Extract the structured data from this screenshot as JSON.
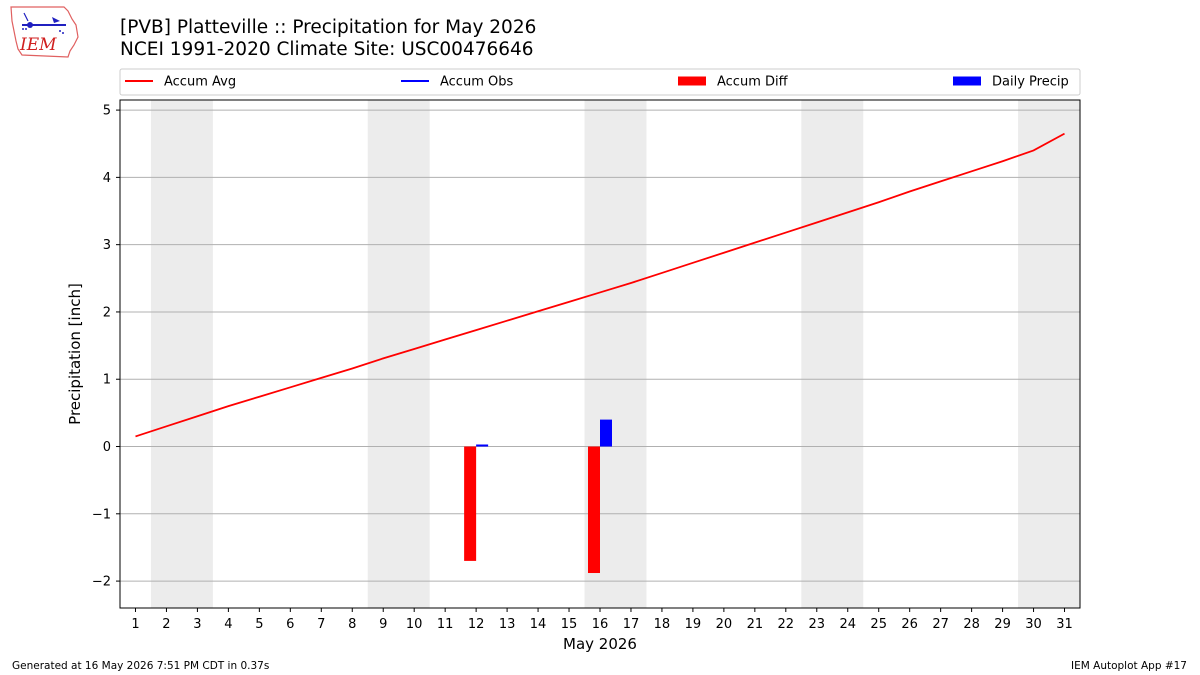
{
  "header": {
    "title_line1": "[PVB] Platteville :: Precipitation for May 2026",
    "title_line2": "NCEI 1991-2020 Climate Site: USC00476646",
    "logo_text": "IEM"
  },
  "footer": {
    "generated": "Generated at 16 May 2026 7:51 PM CDT in 0.37s",
    "app": "IEM Autoplot App #17"
  },
  "colors": {
    "avg": "#ff0000",
    "obs": "#0000ff",
    "diff": "#ff0000",
    "daily": "#0000ff",
    "weekend_shade": "#ececec",
    "grid": "#b0b0b0"
  },
  "chart_data": {
    "type": "line",
    "xlabel": "May 2026",
    "ylabel": "Precipitation [inch]",
    "xlim": [
      0.5,
      31.5
    ],
    "ylim": [
      -2.4,
      5.15
    ],
    "yticks": [
      -2,
      -1,
      0,
      1,
      2,
      3,
      4,
      5
    ],
    "ytick_labels": [
      "−2",
      "−1",
      "0",
      "1",
      "2",
      "3",
      "4",
      "5"
    ],
    "xticks": [
      1,
      2,
      3,
      4,
      5,
      6,
      7,
      8,
      9,
      10,
      11,
      12,
      13,
      14,
      15,
      16,
      17,
      18,
      19,
      20,
      21,
      22,
      23,
      24,
      25,
      26,
      27,
      28,
      29,
      30,
      31
    ],
    "xtick_labels": [
      "1",
      "2",
      "3",
      "4",
      "5",
      "6",
      "7",
      "8",
      "9",
      "10",
      "11",
      "12",
      "13",
      "14",
      "15",
      "16",
      "17",
      "18",
      "19",
      "20",
      "21",
      "22",
      "23",
      "24",
      "25",
      "26",
      "27",
      "28",
      "29",
      "30",
      "31"
    ],
    "grid": "horizontal",
    "shaded_day_ranges": [
      [
        1.5,
        3.5
      ],
      [
        8.5,
        10.5
      ],
      [
        15.5,
        17.5
      ],
      [
        22.5,
        24.5
      ],
      [
        29.5,
        31.5
      ]
    ],
    "legend": {
      "placement": "top",
      "entries": [
        {
          "label": "Accum Avg",
          "kind": "line"
        },
        {
          "label": "Accum Obs",
          "kind": "line"
        },
        {
          "label": "Accum Diff",
          "kind": "bar"
        },
        {
          "label": "Daily Precip",
          "kind": "bar"
        }
      ]
    },
    "series": [
      {
        "name": "Accum Avg",
        "type": "line",
        "x": [
          1,
          2,
          3,
          4,
          5,
          6,
          7,
          8,
          9,
          10,
          11,
          12,
          13,
          14,
          15,
          16,
          17,
          18,
          19,
          20,
          21,
          22,
          23,
          24,
          25,
          26,
          27,
          28,
          29,
          30,
          31
        ],
        "values": [
          0.15,
          0.3,
          0.45,
          0.6,
          0.74,
          0.88,
          1.02,
          1.16,
          1.31,
          1.45,
          1.59,
          1.73,
          1.87,
          2.01,
          2.15,
          2.29,
          2.43,
          2.58,
          2.73,
          2.88,
          3.03,
          3.18,
          3.33,
          3.48,
          3.63,
          3.79,
          3.94,
          4.09,
          4.24,
          4.4,
          4.65
        ]
      },
      {
        "name": "Accum Obs",
        "type": "line",
        "x": [],
        "values": []
      },
      {
        "name": "Accum Diff",
        "type": "bar",
        "x": [
          12,
          16
        ],
        "values": [
          -1.7,
          -1.88
        ]
      },
      {
        "name": "Daily Precip",
        "type": "bar",
        "x": [
          12,
          16
        ],
        "values": [
          0.03,
          0.4
        ]
      }
    ]
  }
}
